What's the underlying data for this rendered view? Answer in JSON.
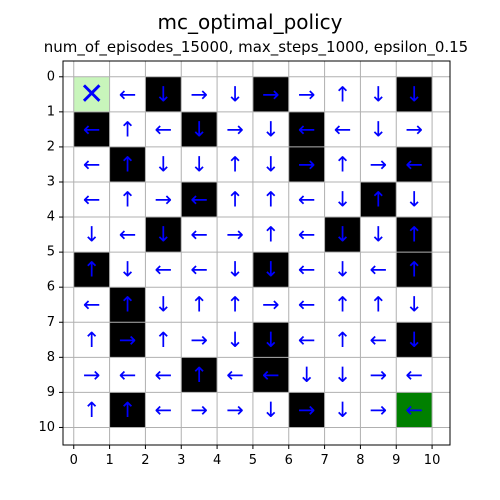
{
  "chart_data": {
    "type": "heatmap",
    "title": "mc_optimal_policy",
    "subtitle": "num_of_episodes_15000, max_steps_1000, epsilon_0.15",
    "xlabel": "",
    "ylabel": "",
    "xlim": [
      -0.3,
      10.5
    ],
    "ylim": [
      -0.45,
      10.5
    ],
    "y_inverted": true,
    "grid": true,
    "x_ticks": [
      0,
      1,
      2,
      3,
      4,
      5,
      6,
      7,
      8,
      9,
      10
    ],
    "y_ticks": [
      0,
      1,
      2,
      3,
      4,
      5,
      6,
      7,
      8,
      9,
      10
    ],
    "grid_size": [
      10,
      10
    ],
    "colors": {
      "empty": "#ffffff",
      "wall": "#000000",
      "start": "#c8f5bb",
      "goal": "#008000",
      "arrow": "#0000ff",
      "grid": "#b0b0b0"
    },
    "cells": [
      [
        "X",
        "←",
        "↓",
        "→",
        "↓",
        "→",
        "→",
        "↑",
        "↓",
        "↓"
      ],
      [
        "←",
        "↑",
        "←",
        "↓",
        "→",
        "↓",
        "←",
        "←",
        "↓",
        "→"
      ],
      [
        "←",
        "↑",
        "↓",
        "↓",
        "↑",
        "↓",
        "→",
        "↑",
        "→",
        "←"
      ],
      [
        "←",
        "↑",
        "→",
        "←",
        "↑",
        "↑",
        "←",
        "↓",
        "↑",
        "↓"
      ],
      [
        "↓",
        "←",
        "↓",
        "←",
        "→",
        "↑",
        "←",
        "↓",
        "↓",
        "↑"
      ],
      [
        "↑",
        "↓",
        "←",
        "←",
        "↓",
        "↓",
        "←",
        "↓",
        "←",
        "↑"
      ],
      [
        "←",
        "↑",
        "↓",
        "↑",
        "↑",
        "→",
        "←",
        "↑",
        "↑",
        "↓"
      ],
      [
        "↑",
        "→",
        "↑",
        "→",
        "↓",
        "↓",
        "←",
        "↑",
        "←",
        "↓"
      ],
      [
        "→",
        "←",
        "←",
        "↑",
        "←",
        "←",
        "↓",
        "↓",
        "→",
        "←"
      ],
      [
        "↑",
        "↑",
        "←",
        "→",
        "→",
        "↓",
        "→",
        "↓",
        "→",
        "←"
      ]
    ],
    "cell_types": [
      [
        "start",
        "empty",
        "wall",
        "empty",
        "empty",
        "wall",
        "empty",
        "empty",
        "empty",
        "wall"
      ],
      [
        "wall",
        "empty",
        "empty",
        "wall",
        "empty",
        "empty",
        "wall",
        "empty",
        "empty",
        "empty"
      ],
      [
        "empty",
        "wall",
        "empty",
        "empty",
        "empty",
        "empty",
        "wall",
        "empty",
        "empty",
        "wall"
      ],
      [
        "empty",
        "empty",
        "empty",
        "wall",
        "empty",
        "empty",
        "empty",
        "empty",
        "wall",
        "empty"
      ],
      [
        "empty",
        "empty",
        "wall",
        "empty",
        "empty",
        "empty",
        "empty",
        "wall",
        "empty",
        "wall"
      ],
      [
        "wall",
        "empty",
        "empty",
        "empty",
        "empty",
        "wall",
        "empty",
        "empty",
        "empty",
        "wall"
      ],
      [
        "empty",
        "wall",
        "empty",
        "empty",
        "empty",
        "empty",
        "empty",
        "empty",
        "empty",
        "empty"
      ],
      [
        "empty",
        "wall",
        "empty",
        "empty",
        "empty",
        "wall",
        "empty",
        "empty",
        "empty",
        "wall"
      ],
      [
        "empty",
        "empty",
        "empty",
        "wall",
        "empty",
        "wall",
        "empty",
        "empty",
        "empty",
        "empty"
      ],
      [
        "empty",
        "wall",
        "empty",
        "empty",
        "empty",
        "empty",
        "wall",
        "empty",
        "empty",
        "goal"
      ]
    ]
  }
}
